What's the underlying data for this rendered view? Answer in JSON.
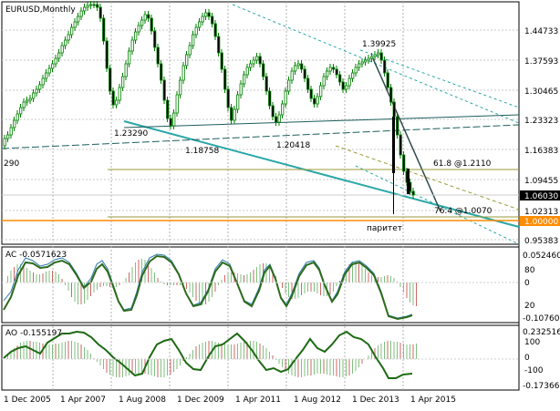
{
  "main": {
    "symbol": "EURUSD,Monthly",
    "price_axis": [
      "1.44733",
      "1.37593",
      "1.30465",
      "1.23323",
      "1.16383",
      "1.09455",
      "1.02313",
      "0.95383"
    ],
    "current_price": "1.06030",
    "parity_price": "1.00000",
    "left_label": "290",
    "annotations": [
      {
        "id": "high-2014",
        "text": "1.39925"
      },
      {
        "id": "low-2008",
        "text": "1.23290"
      },
      {
        "id": "low-2010",
        "text": "1.18758"
      },
      {
        "id": "low-2012",
        "text": "1.20418"
      },
      {
        "id": "fib-618",
        "text": "61.8 @1.2110"
      },
      {
        "id": "fib-764",
        "text": "76.4 @1.0070"
      },
      {
        "id": "parity",
        "text": "паритет"
      }
    ]
  },
  "ac": {
    "title": "AC -0.0571623",
    "scale": [
      "0.052460",
      "80",
      "0",
      "20",
      "-0.10760"
    ]
  },
  "ao": {
    "title": "AO -0.155197",
    "scale": [
      "0.232516",
      "100",
      "0",
      "-100",
      "-0.17366"
    ]
  },
  "time_axis": [
    "1 Dec 2005",
    "1 Apr 2007",
    "1 Aug 2008",
    "1 Dec 2009",
    "1 Apr 2011",
    "1 Aug 2012",
    "1 Dec 2013",
    "1 Apr 2015"
  ],
  "colors": {
    "bull": "#008000",
    "bear": "#8b0000",
    "ao_up": "#7fbf7f",
    "ao_down": "#cc6666",
    "channel": "#2aa7a7",
    "parity": "#ff8c00",
    "fib": "#9a9a3a",
    "current": "#000000"
  }
}
